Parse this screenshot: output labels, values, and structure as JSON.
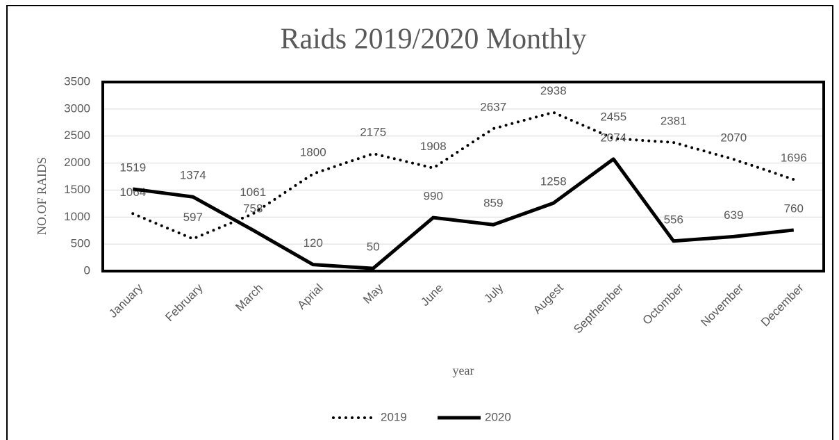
{
  "chart_data": {
    "type": "line",
    "title": "Raids 2019/2020 Monthly",
    "x_label": "year",
    "y_label": "NO.OF RAIDS",
    "categories": [
      "January",
      "February",
      "March",
      "Aprial",
      "May",
      "June",
      "July",
      "Augest",
      "Septhember",
      "Octomber",
      "November",
      "December"
    ],
    "series": [
      {
        "name": "2019",
        "color": "#000000",
        "line_style": "dotted",
        "values": [
          1064,
          597,
          1061,
          1800,
          2175,
          1908,
          2637,
          2938,
          2455,
          2381,
          2070,
          1696
        ]
      },
      {
        "name": "2020",
        "color": "#000000",
        "line_style": "solid",
        "values": [
          1519,
          1374,
          758,
          120,
          50,
          990,
          859,
          1258,
          2074,
          556,
          639,
          760
        ]
      }
    ],
    "ylim": [
      0,
      3500
    ],
    "yticks": [
      0,
      500,
      1000,
      1500,
      2000,
      2500,
      3000,
      3500
    ],
    "grid": true,
    "legend": "bottom"
  }
}
